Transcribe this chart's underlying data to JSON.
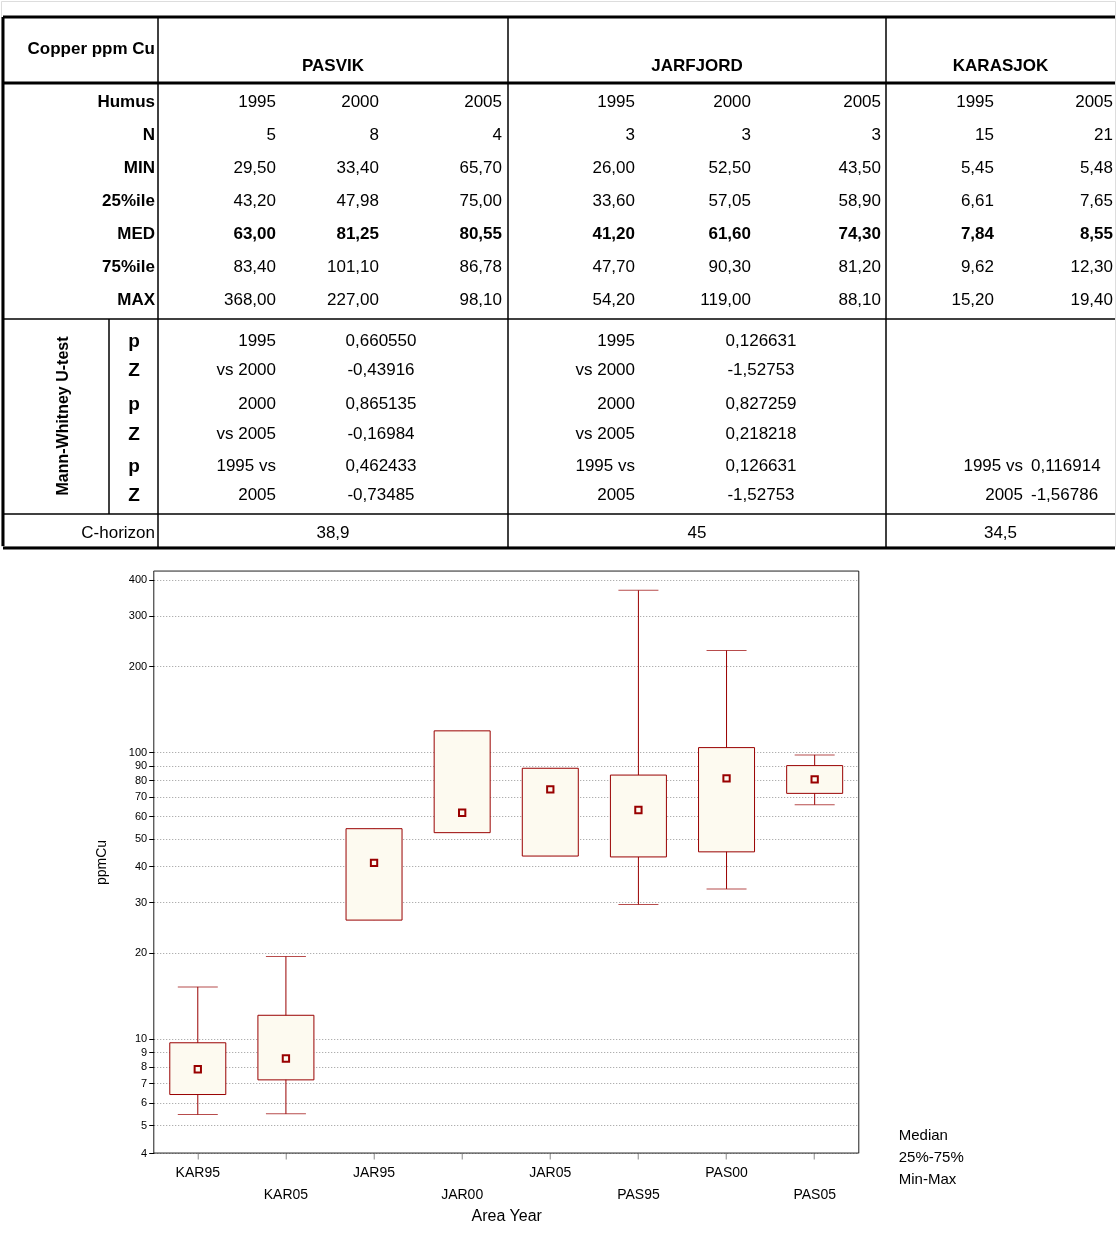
{
  "chart_data": [
    {
      "type": "other",
      "title": "Copper ppm Cu",
      "categories": [
        "PASVIK",
        "JARFJORD",
        "KARASJOK"
      ],
      "y_categories": [
        "Humus",
        "N",
        "MIN",
        "25%ile",
        "MED",
        "75%ile",
        "MAX"
      ],
      "cell_labels": [
        [
          "1995",
          "2000",
          "2005",
          "1995",
          "2000",
          "2005",
          "1995",
          "2005"
        ],
        [
          "5",
          "8",
          "4",
          "3",
          "3",
          "3",
          "15",
          "21"
        ],
        [
          "29,50",
          "33,40",
          "65,70",
          "26,00",
          "52,50",
          "43,50",
          "5,45",
          "5,48"
        ],
        [
          "43,20",
          "47,98",
          "75,00",
          "33,60",
          "57,05",
          "58,90",
          "6,61",
          "7,65"
        ],
        [
          "63,00",
          "81,25",
          "80,55",
          "41,20",
          "61,60",
          "74,30",
          "7,84",
          "8,55"
        ],
        [
          "83,40",
          "101,10",
          "86,78",
          "47,70",
          "90,30",
          "81,20",
          "9,62",
          "12,30"
        ],
        [
          "368,00",
          "227,00",
          "98,10",
          "54,20",
          "119,00",
          "88,10",
          "15,20",
          "19,40"
        ]
      ],
      "ylabel": "Mann-Whitney U-test",
      "annotations": [
        "p",
        "Z",
        "p",
        "Z",
        "p",
        "Z",
        "1995",
        "vs 2000",
        "2000",
        "vs 2005",
        "1995 vs",
        "2005",
        "0,660550",
        "-0,43916",
        "0,865135",
        "-0,16984",
        "0,462433",
        "-0,73485",
        "1995",
        "vs 2000",
        "2000",
        "vs 2005",
        "1995 vs",
        "2005",
        "0,126631",
        "-1,52753",
        "0,827259",
        "0,218218",
        "0,126631",
        "-1,52753",
        "1995 vs",
        "2005",
        "0,116914",
        "-1,56786",
        "C-horizon",
        "38,9",
        "45",
        "34,5"
      ]
    },
    {
      "type": "box",
      "xlabel": "Area Year",
      "ylabel": "ppmCu",
      "categories": [
        "KAR95",
        "KAR05",
        "JAR95",
        "JAR00",
        "JAR05",
        "PAS95",
        "PAS00",
        "PAS05"
      ],
      "series": [
        {
          "color": "#990000",
          "boxes": [
            {
              "low": 5.45,
              "q1": 6.4,
              "median": 7.84,
              "q3": 9.7,
              "high": 15.2
            },
            {
              "low": 5.48,
              "q1": 7.2,
              "median": 8.55,
              "q3": 12.1,
              "high": 19.4
            },
            {
              "low": 26.0,
              "q1": 26.0,
              "median": 41.2,
              "q3": 54.2,
              "high": 54.2
            },
            {
              "low": 52.5,
              "q1": 52.5,
              "median": 61.6,
              "q3": 119.0,
              "high": 119.0
            },
            {
              "low": 43.5,
              "q1": 43.5,
              "median": 74.3,
              "q3": 88.1,
              "high": 88.1
            },
            {
              "low": 29.5,
              "q1": 43.2,
              "median": 63.0,
              "q3": 83.4,
              "high": 368.0
            },
            {
              "low": 33.4,
              "q1": 45,
              "median": 81.25,
              "q3": 104,
              "high": 227.0
            },
            {
              "low": 65.7,
              "q1": 72,
              "median": 80.55,
              "q3": 90,
              "high": 98.1
            }
          ]
        }
      ],
      "log": true,
      "ylim": [
        4,
        430
      ],
      "yticks": [
        4,
        5,
        6,
        7,
        8,
        9,
        10,
        20,
        30,
        40,
        50,
        60,
        70,
        80,
        90,
        100,
        200,
        300,
        400
      ],
      "grid": "y",
      "annotations": [
        "Median",
        "25%-75%",
        "Min-Max"
      ]
    }
  ]
}
